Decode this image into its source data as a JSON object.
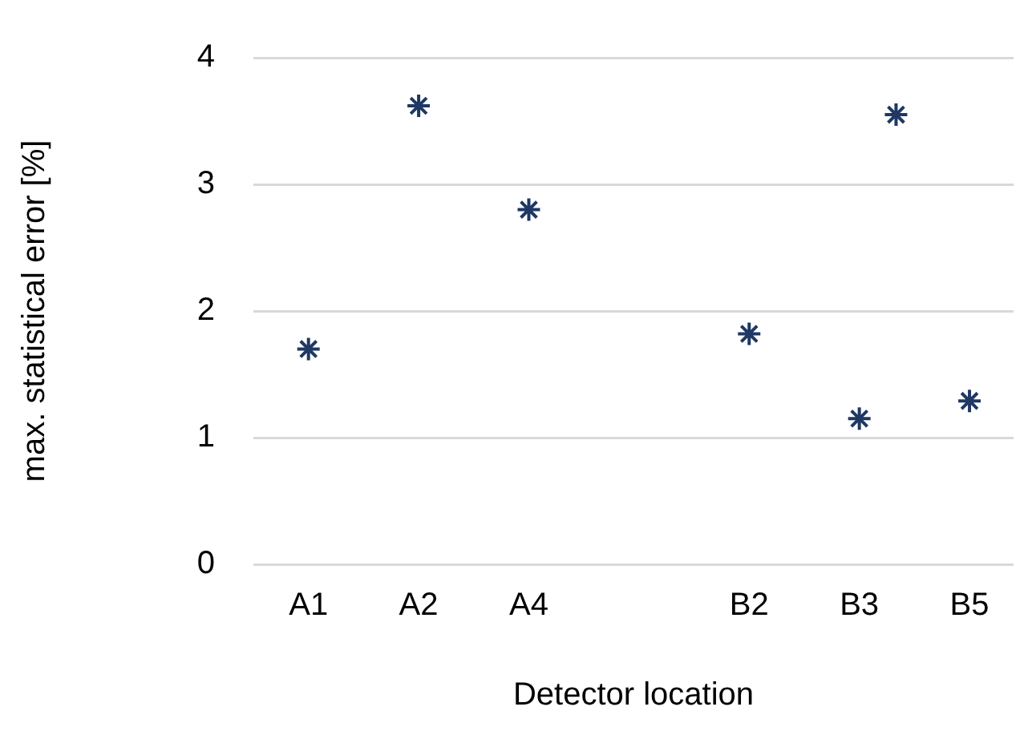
{
  "chart_data": {
    "type": "scatter",
    "xlabel": "Detector location",
    "ylabel": "max. statistical error [%]",
    "categories": [
      "A1",
      null,
      null,
      "A2",
      null,
      null,
      "A4",
      null,
      null,
      null,
      null,
      null,
      "B2",
      null,
      null,
      "B3",
      null,
      null,
      "B5"
    ],
    "values": [
      1.7,
      null,
      null,
      3.62,
      null,
      null,
      2.8,
      null,
      null,
      null,
      null,
      null,
      1.82,
      null,
      null,
      1.15,
      3.55,
      null,
      1.29
    ],
    "color": "#1f3864",
    "marker": "cross",
    "ylim": [
      0,
      4
    ],
    "yticks": [
      0,
      1,
      2,
      3,
      4
    ],
    "grid": "y",
    "legend": false
  }
}
